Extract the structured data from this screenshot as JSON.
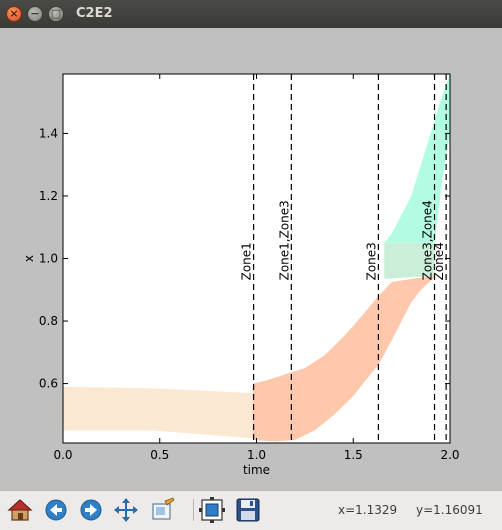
{
  "window": {
    "title": "C2E2"
  },
  "titlebar_buttons": {
    "close": "×",
    "minimize": "−",
    "maximize": "□"
  },
  "chart_data": {
    "type": "area",
    "xlabel": "time",
    "ylabel": "x",
    "xlim": [
      0.0,
      2.0
    ],
    "ylim": [
      0.41,
      1.59
    ],
    "x_ticks": [
      "0.0",
      "0.5",
      "1.0",
      "1.5",
      "2.0"
    ],
    "y_ticks": [
      "0.6",
      "0.8",
      "1.0",
      "1.2",
      "1.4"
    ],
    "x_tick_values": [
      0.0,
      0.5,
      1.0,
      1.5,
      2.0
    ],
    "y_tick_values": [
      0.6,
      0.8,
      1.0,
      1.2,
      1.4
    ],
    "grid": false,
    "regions": [
      {
        "color": "#fbe8d2",
        "upper": [
          [
            0,
            0.59
          ],
          [
            0.46,
            0.585
          ],
          [
            0.97,
            0.57
          ],
          [
            0.99,
            0.565
          ]
        ],
        "lower": [
          [
            0,
            0.45
          ],
          [
            0.46,
            0.45
          ],
          [
            0.98,
            0.425
          ],
          [
            0.99,
            0.42
          ]
        ]
      },
      {
        "color": "#ffc8ad",
        "upper": [
          [
            0.98,
            0.6
          ],
          [
            1.05,
            0.61
          ],
          [
            1.15,
            0.63
          ],
          [
            1.25,
            0.65
          ],
          [
            1.35,
            0.69
          ],
          [
            1.45,
            0.75
          ],
          [
            1.55,
            0.82
          ],
          [
            1.63,
            0.88
          ],
          [
            1.7,
            0.925
          ],
          [
            1.8,
            0.935
          ],
          [
            1.92,
            0.945
          ]
        ],
        "lower": [
          [
            0.98,
            0.42
          ],
          [
            1.1,
            0.415
          ],
          [
            1.2,
            0.42
          ],
          [
            1.3,
            0.45
          ],
          [
            1.4,
            0.5
          ],
          [
            1.5,
            0.56
          ],
          [
            1.55,
            0.6
          ],
          [
            1.63,
            0.66
          ],
          [
            1.7,
            0.74
          ],
          [
            1.75,
            0.8
          ],
          [
            1.8,
            0.86
          ],
          [
            1.85,
            0.9
          ],
          [
            1.92,
            0.94
          ]
        ]
      },
      {
        "color": "#cbeed8",
        "upper": [
          [
            1.66,
            1.05
          ],
          [
            1.92,
            1.05
          ]
        ],
        "lower": [
          [
            1.66,
            0.935
          ],
          [
            1.92,
            0.945
          ]
        ]
      },
      {
        "color": "#b2fce4",
        "upper": [
          [
            1.66,
            1.05
          ],
          [
            1.7,
            1.08
          ],
          [
            1.8,
            1.2
          ],
          [
            1.9,
            1.4
          ],
          [
            1.96,
            1.52
          ],
          [
            2.0,
            1.59
          ]
        ],
        "lower": [
          [
            1.66,
            1.05
          ],
          [
            1.92,
            1.05
          ],
          [
            1.96,
            1.25
          ],
          [
            2.0,
            1.4
          ]
        ]
      }
    ],
    "zone_lines": [
      {
        "x": 0.985,
        "label": "Zone1"
      },
      {
        "x": 1.18,
        "label": "Zone1,Zone3"
      },
      {
        "x": 1.63,
        "label": "Zone3"
      },
      {
        "x": 1.92,
        "label": "Zone3,Zone4"
      },
      {
        "x": 1.98,
        "label": "Zone4"
      }
    ]
  },
  "toolbar": {
    "items": [
      {
        "name": "home-icon",
        "label": "Home"
      },
      {
        "name": "back-icon",
        "label": "Back"
      },
      {
        "name": "forward-icon",
        "label": "Forward"
      },
      {
        "name": "pan-icon",
        "label": "Pan"
      },
      {
        "name": "zoom-icon",
        "label": "Zoom"
      },
      {
        "name": "subplots-icon",
        "label": "Subplots"
      },
      {
        "name": "save-icon",
        "label": "Save"
      }
    ],
    "x_readout": "x=1.1329",
    "y_readout": "y=1.16091"
  }
}
